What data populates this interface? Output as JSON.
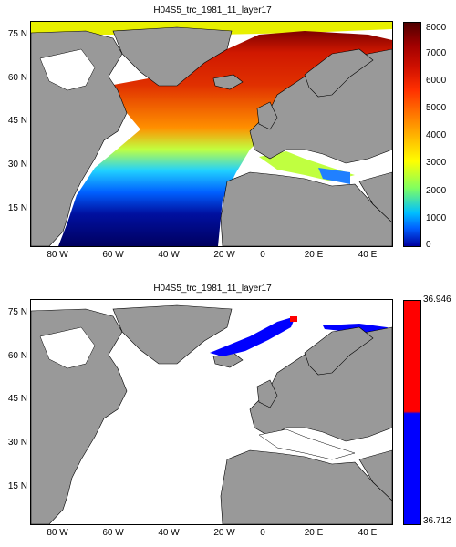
{
  "panels": [
    {
      "title": "H04S5_trc_1981_11_layer17",
      "lat_labels": [
        "75 N",
        "60 N",
        "45 N",
        "30 N",
        "15 N"
      ],
      "lon_labels": [
        "80 W",
        "60 W",
        "40 W",
        "20 W",
        "0",
        "20 E",
        "40 E"
      ],
      "colorbar": {
        "type": "continuous",
        "ticks": [
          "8000",
          "7000",
          "6000",
          "5000",
          "4000",
          "3000",
          "2000",
          "1000",
          "0"
        ]
      }
    },
    {
      "title": "H04S5_trc_1981_11_layer17",
      "lat_labels": [
        "75 N",
        "60 N",
        "45 N",
        "30 N",
        "15 N"
      ],
      "lon_labels": [
        "80 W",
        "60 W",
        "40 W",
        "20 W",
        "0",
        "20 E",
        "40 E"
      ],
      "colorbar": {
        "type": "binary",
        "ticks": [
          "36.946",
          "36.712"
        ],
        "colors": [
          "#ff0000",
          "#0000ff"
        ]
      }
    }
  ],
  "colors": {
    "land": "#999999",
    "ocean_nodata": "#ffffff"
  }
}
